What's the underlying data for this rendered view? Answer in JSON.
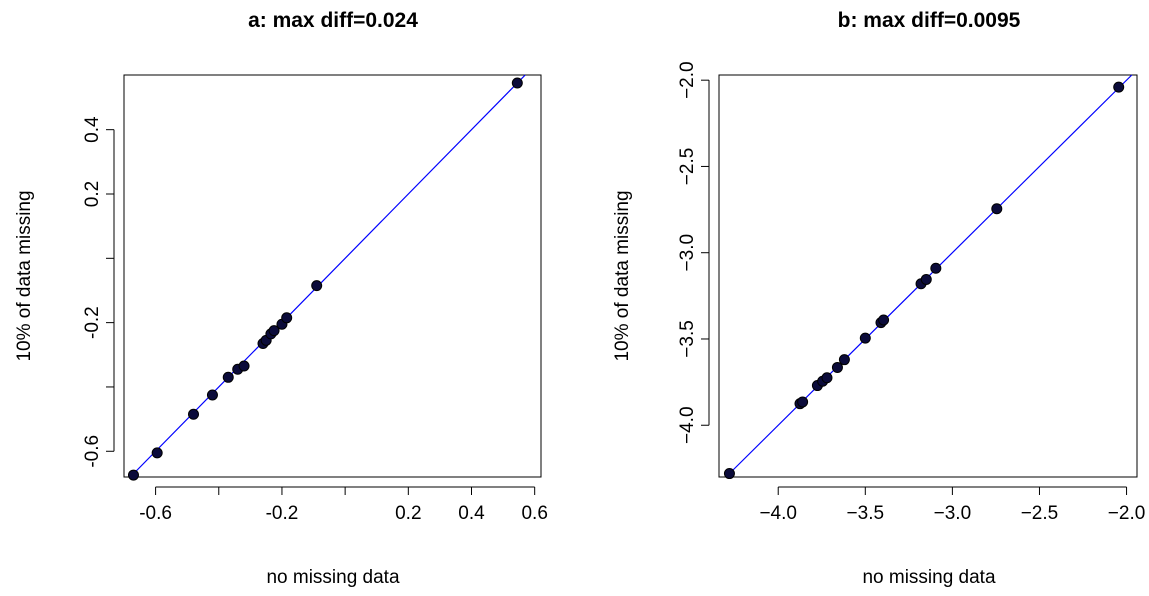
{
  "chart_data": [
    {
      "type": "scatter",
      "title": "a: max diff=0.024",
      "xlabel": "no missing data",
      "ylabel": "10% of data missing",
      "xlim": [
        -0.7,
        0.62
      ],
      "ylim": [
        -0.68,
        0.57
      ],
      "x_ticks": [
        -0.6,
        -0.4,
        -0.2,
        0.0,
        0.2,
        0.4,
        0.6
      ],
      "x_tick_labels": [
        "-0.6",
        "",
        "-0.2",
        "",
        "0.2",
        "0.4",
        "0.6"
      ],
      "y_ticks": [
        -0.6,
        -0.4,
        -0.2,
        0.0,
        0.2,
        0.4
      ],
      "y_tick_labels": [
        "-0.6",
        "",
        "-0.2",
        "",
        "0.2",
        "0.4"
      ],
      "reference_line": {
        "slope": 1,
        "intercept": 0,
        "color": "#0000ff"
      },
      "point_color": "#000000",
      "point_fill": "#0b0b3a",
      "points": [
        {
          "x": -0.67,
          "y": -0.674
        },
        {
          "x": -0.595,
          "y": -0.605
        },
        {
          "x": -0.48,
          "y": -0.485
        },
        {
          "x": -0.42,
          "y": -0.425
        },
        {
          "x": -0.37,
          "y": -0.37
        },
        {
          "x": -0.34,
          "y": -0.345
        },
        {
          "x": -0.32,
          "y": -0.335
        },
        {
          "x": -0.26,
          "y": -0.265
        },
        {
          "x": -0.25,
          "y": -0.255
        },
        {
          "x": -0.235,
          "y": -0.235
        },
        {
          "x": -0.225,
          "y": -0.225
        },
        {
          "x": -0.2,
          "y": -0.205
        },
        {
          "x": -0.185,
          "y": -0.185
        },
        {
          "x": -0.09,
          "y": -0.085
        },
        {
          "x": 0.545,
          "y": 0.545
        }
      ]
    },
    {
      "type": "scatter",
      "title": "b: max diff=0.0095",
      "xlabel": "no missing data",
      "ylabel": "10% of data missing",
      "xlim": [
        -4.34,
        -1.94
      ],
      "ylim": [
        -4.3,
        -1.97
      ],
      "x_ticks": [
        -4.0,
        -3.5,
        -3.0,
        -2.5,
        -2.0
      ],
      "x_tick_labels": [
        "−4.0",
        "−3.5",
        "−3.0",
        "−2.5",
        "−2.0"
      ],
      "y_ticks": [
        -4.0,
        -3.5,
        -3.0,
        -2.5,
        -2.0
      ],
      "y_tick_labels": [
        "−4.0",
        "−3.5",
        "−3.0",
        "−2.5",
        "−2.0"
      ],
      "reference_line": {
        "slope": 1,
        "intercept": 0,
        "color": "#0000ff"
      },
      "point_color": "#000000",
      "point_fill": "#0b0b3a",
      "points": [
        {
          "x": -4.28,
          "y": -4.28
        },
        {
          "x": -3.875,
          "y": -3.875
        },
        {
          "x": -3.86,
          "y": -3.865
        },
        {
          "x": -3.775,
          "y": -3.77
        },
        {
          "x": -3.745,
          "y": -3.745
        },
        {
          "x": -3.72,
          "y": -3.725
        },
        {
          "x": -3.66,
          "y": -3.665
        },
        {
          "x": -3.62,
          "y": -3.62
        },
        {
          "x": -3.5,
          "y": -3.495
        },
        {
          "x": -3.41,
          "y": -3.405
        },
        {
          "x": -3.395,
          "y": -3.39
        },
        {
          "x": -3.18,
          "y": -3.18
        },
        {
          "x": -3.15,
          "y": -3.155
        },
        {
          "x": -3.095,
          "y": -3.09
        },
        {
          "x": -2.745,
          "y": -2.745
        },
        {
          "x": -2.045,
          "y": -2.04
        }
      ]
    }
  ]
}
